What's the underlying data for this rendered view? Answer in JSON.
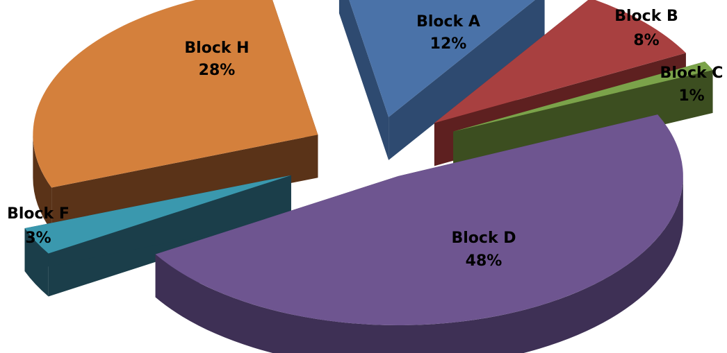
{
  "chart_data": {
    "type": "pie",
    "style": "3d-exploded",
    "slices": [
      {
        "name": "Block A",
        "value": 12,
        "label": "12%",
        "color": "#4A72A8",
        "side_color": "#2E4A70"
      },
      {
        "name": "Block B",
        "value": 8,
        "label": "8%",
        "color": "#A84040",
        "side_color": "#5E2020"
      },
      {
        "name": "Block C",
        "value": 1,
        "label": "1%",
        "color": "#7BA34A",
        "side_color": "#3C4E20"
      },
      {
        "name": "Block D",
        "value": 48,
        "label": "48%",
        "color": "#6E5590",
        "side_color": "#3E3055"
      },
      {
        "name": "Block F",
        "value": 3,
        "label": "3%",
        "color": "#3A98AE",
        "side_color": "#1B3E4A"
      },
      {
        "name": "Block H",
        "value": 28,
        "label": "28%",
        "color": "#D4803C",
        "side_color": "#5A3318"
      }
    ]
  }
}
